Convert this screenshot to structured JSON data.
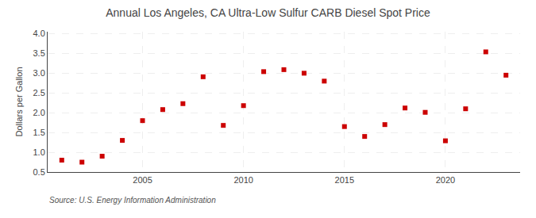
{
  "chart_data": {
    "type": "scatter",
    "title": "Annual Los Angeles, CA Ultra-Low Sulfur CARB Diesel Spot Price",
    "ylabel": "Dollars per Gallon",
    "annotations": [
      "Source: U.S. Energy Information Administration"
    ],
    "x": [
      2001,
      2002,
      2003,
      2004,
      2005,
      2006,
      2007,
      2008,
      2009,
      2010,
      2011,
      2012,
      2013,
      2014,
      2015,
      2016,
      2017,
      2018,
      2019,
      2020,
      2021,
      2022,
      2023
    ],
    "values": [
      0.8,
      0.75,
      0.9,
      1.3,
      1.8,
      2.08,
      2.23,
      2.91,
      1.68,
      2.18,
      3.04,
      3.09,
      3.0,
      2.8,
      1.65,
      1.4,
      1.7,
      2.12,
      2.01,
      1.29,
      2.1,
      3.54,
      2.95
    ],
    "color": "#cc0000",
    "marker": "square",
    "xlim": [
      2000.3,
      2023.7
    ],
    "xticks": [
      2005,
      2010,
      2015,
      2020
    ],
    "ylim": [
      0.5,
      4.05
    ],
    "yticks": [
      0.5,
      {
        "value": 1.0,
        "label": "1.0"
      },
      1.5,
      {
        "value": 2.0,
        "label": "2.0"
      },
      2.5,
      {
        "value": 3.0,
        "label": "3.0"
      },
      3.5,
      {
        "value": 4.0,
        "label": "4.0"
      }
    ],
    "grid": true
  }
}
